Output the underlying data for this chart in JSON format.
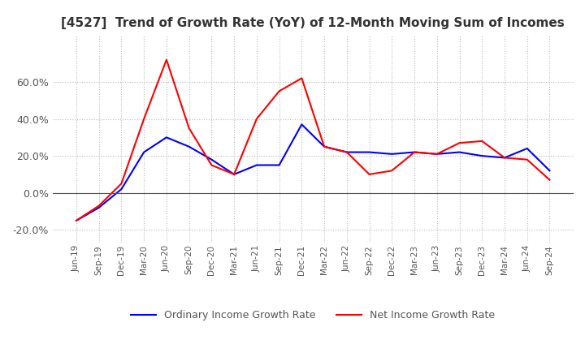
{
  "title": "[4527]  Trend of Growth Rate (YoY) of 12-Month Moving Sum of Incomes",
  "title_fontsize": 11,
  "x_labels": [
    "Jun-19",
    "Sep-19",
    "Dec-19",
    "Mar-20",
    "Jun-20",
    "Sep-20",
    "Dec-20",
    "Mar-21",
    "Jun-21",
    "Sep-21",
    "Dec-21",
    "Mar-22",
    "Jun-22",
    "Sep-22",
    "Dec-22",
    "Mar-23",
    "Jun-23",
    "Sep-23",
    "Dec-23",
    "Mar-24",
    "Jun-24",
    "Sep-24"
  ],
  "ordinary_income": [
    -15,
    -8,
    2,
    22,
    30,
    25,
    18,
    10,
    15,
    15,
    37,
    25,
    22,
    22,
    21,
    22,
    21,
    22,
    20,
    19,
    24,
    12
  ],
  "net_income": [
    -15,
    -7,
    5,
    40,
    72,
    35,
    15,
    10,
    40,
    55,
    62,
    25,
    22,
    10,
    12,
    22,
    21,
    27,
    28,
    19,
    18,
    7
  ],
  "ordinary_color": "#0000ff",
  "net_color": "#ff0000",
  "ylim": [
    -27,
    85
  ],
  "yticks": [
    -20.0,
    0.0,
    20.0,
    40.0,
    60.0
  ],
  "background_color": "#ffffff",
  "grid_color": "#bbbbbb",
  "grid_style": "dotted",
  "legend_labels": [
    "Ordinary Income Growth Rate",
    "Net Income Growth Rate"
  ]
}
